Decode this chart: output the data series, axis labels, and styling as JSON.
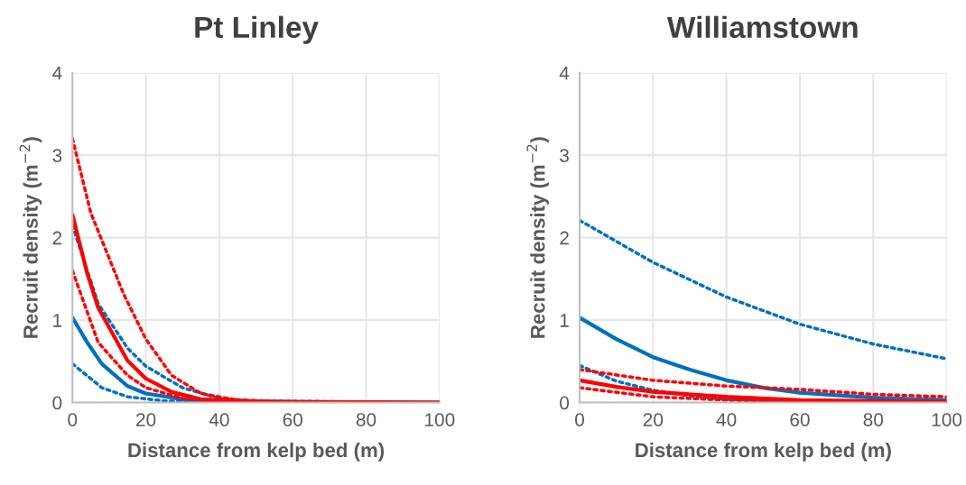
{
  "chart_data": [
    {
      "type": "line",
      "title": "Pt Linley",
      "xlabel": "Distance from kelp bed (m)",
      "ylabel": "Recruit density (m$^{−2}$)",
      "xlim": [
        0,
        100
      ],
      "ylim": [
        0,
        4
      ],
      "xticks": [
        0,
        20,
        40,
        60,
        80,
        100
      ],
      "yticks": [
        0,
        1,
        2,
        3,
        4
      ],
      "grid": true,
      "series": [
        {
          "color": "#0070c0",
          "line_style": "dotted",
          "x": [
            0,
            8,
            15,
            25,
            40,
            100
          ],
          "values": [
            0.47,
            0.18,
            0.07,
            0.02,
            0,
            0
          ]
        },
        {
          "color": "#0070c0",
          "line_style": "dotted",
          "x": [
            0,
            7,
            15,
            20,
            30,
            40,
            50,
            100
          ],
          "values": [
            2.15,
            1.2,
            0.66,
            0.44,
            0.18,
            0.05,
            0.02,
            0
          ]
        },
        {
          "color": "#0070c0",
          "line_style": "solid",
          "x": [
            0,
            4,
            8,
            15,
            20,
            30,
            40,
            100
          ],
          "values": [
            1.03,
            0.73,
            0.47,
            0.2,
            0.11,
            0.04,
            0.01,
            0
          ]
        },
        {
          "color": "#ff0000",
          "line_style": "dotted",
          "x": [
            0,
            7,
            15,
            20,
            30,
            40,
            100
          ],
          "values": [
            1.6,
            0.73,
            0.33,
            0.18,
            0.05,
            0.01,
            0
          ]
        },
        {
          "color": "#ff0000",
          "line_style": "dotted",
          "x": [
            0,
            5,
            14,
            20,
            27,
            35,
            45,
            60,
            100
          ],
          "values": [
            3.2,
            2.3,
            1.31,
            0.77,
            0.33,
            0.11,
            0.03,
            0.01,
            0
          ]
        },
        {
          "color": "#ff0000",
          "line_style": "solid",
          "x": [
            0,
            4,
            7,
            15,
            20,
            27,
            35,
            50,
            100
          ],
          "values": [
            2.28,
            1.57,
            1.15,
            0.51,
            0.29,
            0.13,
            0.04,
            0.01,
            0
          ]
        }
      ]
    },
    {
      "type": "line",
      "title": "Williamstown",
      "xlabel": "Distance from kelp bed (m)",
      "ylabel": "Recruit density (m$^{−2}$)",
      "xlim": [
        0,
        100
      ],
      "ylim": [
        0,
        4
      ],
      "xticks": [
        0,
        20,
        40,
        60,
        80,
        100
      ],
      "yticks": [
        0,
        1,
        2,
        3,
        4
      ],
      "grid": true,
      "series": [
        {
          "color": "#0070c0",
          "line_style": "dotted",
          "x": [
            0,
            10,
            20,
            30,
            40,
            60,
            100
          ],
          "values": [
            0.45,
            0.26,
            0.15,
            0.08,
            0.04,
            0.01,
            0
          ]
        },
        {
          "color": "#0070c0",
          "line_style": "dotted",
          "x": [
            0,
            20,
            40,
            60,
            80,
            100
          ],
          "values": [
            2.21,
            1.7,
            1.28,
            0.95,
            0.71,
            0.53
          ]
        },
        {
          "color": "#0070c0",
          "line_style": "solid",
          "x": [
            0,
            10,
            20,
            30,
            40,
            50,
            60,
            80,
            100
          ],
          "values": [
            1.03,
            0.77,
            0.55,
            0.4,
            0.27,
            0.18,
            0.12,
            0.06,
            0.03
          ]
        },
        {
          "color": "#ff0000",
          "line_style": "dotted",
          "x": [
            0,
            20,
            40,
            60,
            100
          ],
          "values": [
            0.18,
            0.07,
            0.03,
            0.01,
            0
          ]
        },
        {
          "color": "#ff0000",
          "line_style": "dotted",
          "x": [
            0,
            20,
            40,
            60,
            80,
            100
          ],
          "values": [
            0.4,
            0.27,
            0.2,
            0.16,
            0.1,
            0.07
          ]
        },
        {
          "color": "#ff0000",
          "line_style": "solid",
          "x": [
            0,
            10,
            20,
            40,
            60,
            80,
            100
          ],
          "values": [
            0.27,
            0.19,
            0.13,
            0.07,
            0.03,
            0.02,
            0.01
          ]
        }
      ]
    }
  ]
}
